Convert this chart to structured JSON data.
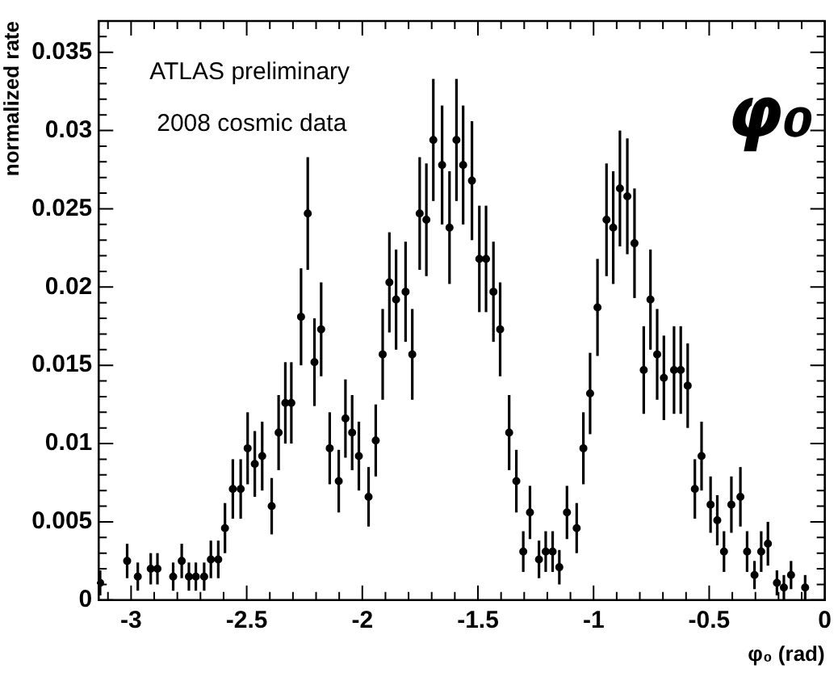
{
  "chart_data": {
    "type": "scatter",
    "xlabel": "φ₀ (rad)",
    "ylabel": "normalized rate",
    "annotations": [
      "ATLAS preliminary",
      "2008 cosmic data",
      "φ₀"
    ],
    "xlim": [
      -3.14,
      0
    ],
    "ylim": [
      0,
      0.037
    ],
    "xticks": [
      -3,
      -2.5,
      -2,
      -1.5,
      -1,
      -0.5,
      0
    ],
    "yticks": [
      0,
      0.005,
      0.01,
      0.015,
      0.02,
      0.025,
      0.03,
      0.035
    ],
    "grid": false,
    "legend": false,
    "marker": "circle",
    "series": [
      {
        "color": "#000000",
        "x": [
          -3.134,
          -3.017,
          -2.971,
          -2.915,
          -2.886,
          -2.818,
          -2.781,
          -2.75,
          -2.72,
          -2.684,
          -2.655,
          -2.623,
          -2.594,
          -2.56,
          -2.526,
          -2.496,
          -2.465,
          -2.433,
          -2.392,
          -2.362,
          -2.333,
          -2.307,
          -2.265,
          -2.236,
          -2.207,
          -2.178,
          -2.141,
          -2.102,
          -2.073,
          -2.044,
          -2.015,
          -1.973,
          -1.942,
          -1.912,
          -1.883,
          -1.854,
          -1.813,
          -1.784,
          -1.752,
          -1.723,
          -1.693,
          -1.655,
          -1.623,
          -1.593,
          -1.564,
          -1.526,
          -1.494,
          -1.465,
          -1.433,
          -1.404,
          -1.365,
          -1.334,
          -1.304,
          -1.275,
          -1.236,
          -1.207,
          -1.177,
          -1.148,
          -1.115,
          -1.073,
          -1.044,
          -1.015,
          -0.983,
          -0.944,
          -0.915,
          -0.886,
          -0.854,
          -0.823,
          -0.783,
          -0.754,
          -0.725,
          -0.696,
          -0.652,
          -0.623,
          -0.593,
          -0.562,
          -0.533,
          -0.494,
          -0.465,
          -0.436,
          -0.404,
          -0.365,
          -0.336,
          -0.304,
          -0.275,
          -0.246,
          -0.207,
          -0.177,
          -0.146,
          -0.085
        ],
        "values": [
          0.0011,
          0.0025,
          0.0015,
          0.002,
          0.002,
          0.0015,
          0.0025,
          0.0015,
          0.0015,
          0.0015,
          0.0026,
          0.0026,
          0.0046,
          0.0071,
          0.0071,
          0.0097,
          0.0087,
          0.0092,
          0.006,
          0.0107,
          0.0126,
          0.0126,
          0.0181,
          0.0247,
          0.0152,
          0.0173,
          0.0097,
          0.0076,
          0.0116,
          0.0107,
          0.0092,
          0.0066,
          0.0102,
          0.0157,
          0.0203,
          0.0192,
          0.0197,
          0.0157,
          0.0247,
          0.0243,
          0.0294,
          0.0278,
          0.0238,
          0.0294,
          0.0278,
          0.0268,
          0.0218,
          0.0218,
          0.0197,
          0.0173,
          0.0107,
          0.0076,
          0.0031,
          0.0056,
          0.0026,
          0.0031,
          0.0031,
          0.0021,
          0.0056,
          0.0046,
          0.0097,
          0.0132,
          0.0187,
          0.0243,
          0.0238,
          0.0263,
          0.0258,
          0.0228,
          0.0147,
          0.0192,
          0.0157,
          0.0142,
          0.0147,
          0.0147,
          0.0137,
          0.0071,
          0.0092,
          0.0061,
          0.0051,
          0.0031,
          0.0061,
          0.0066,
          0.0031,
          0.0016,
          0.0031,
          0.0036,
          0.0011,
          0.0008,
          0.0016,
          0.0008
        ],
        "errors": [
          0.0008,
          0.0011,
          0.0009,
          0.001,
          0.001,
          0.0009,
          0.0011,
          0.0009,
          0.0009,
          0.0009,
          0.0012,
          0.0012,
          0.0016,
          0.0019,
          0.0019,
          0.0023,
          0.0021,
          0.0022,
          0.0018,
          0.0024,
          0.0026,
          0.0026,
          0.0031,
          0.0036,
          0.0028,
          0.003,
          0.0023,
          0.002,
          0.0025,
          0.0024,
          0.0022,
          0.0019,
          0.0023,
          0.0029,
          0.0032,
          0.0032,
          0.0032,
          0.0029,
          0.0036,
          0.0036,
          0.0039,
          0.0038,
          0.0036,
          0.0039,
          0.0038,
          0.0038,
          0.0034,
          0.0034,
          0.0032,
          0.003,
          0.0024,
          0.002,
          0.0013,
          0.0017,
          0.0012,
          0.0013,
          0.0013,
          0.0011,
          0.0017,
          0.0016,
          0.0023,
          0.0026,
          0.0031,
          0.0036,
          0.0036,
          0.0037,
          0.0037,
          0.0035,
          0.0028,
          0.0032,
          0.0029,
          0.0027,
          0.0028,
          0.0028,
          0.0027,
          0.0019,
          0.0022,
          0.0018,
          0.0016,
          0.0013,
          0.0018,
          0.0019,
          0.0013,
          0.0009,
          0.0013,
          0.0014,
          0.0008,
          0.0008,
          0.0009,
          0.0008
        ]
      }
    ]
  }
}
